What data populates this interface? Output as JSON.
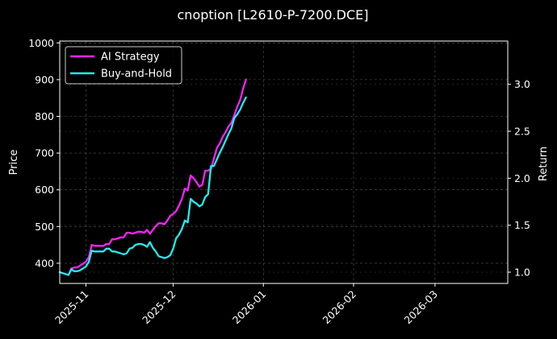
{
  "chart_data": {
    "type": "line",
    "title": "cnoption [L2610-P-7200.DCE]",
    "xlabel": "",
    "ylabel": "Price",
    "ylabel_right": "Return",
    "x_range": [
      "2025-10-23",
      "2026-03-26"
    ],
    "y_range": [
      345,
      1005
    ],
    "y_range_right": [
      0.88,
      3.46
    ],
    "x_ticks": [
      "2025-11-01",
      "2025-12-01",
      "2026-01-01",
      "2026-02-01",
      "2026-03-01"
    ],
    "x_tick_labels": [
      "2025-11",
      "2025-12",
      "2026-01",
      "2026-02",
      "2026-03"
    ],
    "y_ticks": [
      400,
      500,
      600,
      700,
      800,
      900,
      1000
    ],
    "y_ticks_right": [
      1.0,
      1.5,
      2.0,
      2.5,
      3.0
    ],
    "grid": true,
    "legend_position": "top-left",
    "series": [
      {
        "name": "AI Strategy",
        "color": "#ff22ff",
        "axis": "right",
        "x": [
          "2025-10-23",
          "2025-10-24",
          "2025-10-25",
          "2025-10-26",
          "2025-10-27",
          "2025-10-28",
          "2025-10-29",
          "2025-10-30",
          "2025-10-31",
          "2025-11-01",
          "2025-11-02",
          "2025-11-03",
          "2025-11-04",
          "2025-11-05",
          "2025-11-06",
          "2025-11-07",
          "2025-11-08",
          "2025-11-09",
          "2025-11-10",
          "2025-11-11",
          "2025-11-12",
          "2025-11-13",
          "2025-11-14",
          "2025-11-15",
          "2025-11-16",
          "2025-11-17",
          "2025-11-18",
          "2025-11-19",
          "2025-11-20",
          "2025-11-21",
          "2025-11-22",
          "2025-11-23",
          "2025-11-24",
          "2025-11-25",
          "2025-11-26",
          "2025-11-27",
          "2025-11-28",
          "2025-11-29",
          "2025-11-30",
          "2025-12-01",
          "2025-12-02",
          "2025-12-03",
          "2025-12-04",
          "2025-12-05",
          "2025-12-06",
          "2025-12-07",
          "2025-12-08",
          "2025-12-09",
          "2025-12-10",
          "2025-12-11",
          "2025-12-12",
          "2025-12-13",
          "2025-12-14",
          "2025-12-15",
          "2025-12-16",
          "2025-12-17",
          "2025-12-18",
          "2025-12-19",
          "2025-12-20",
          "2025-12-21",
          "2025-12-22",
          "2025-12-23",
          "2025-12-24",
          "2025-12-25",
          "2025-12-26"
        ],
        "values": [
          1.0,
          0.99,
          0.98,
          0.97,
          1.04,
          1.05,
          1.05,
          1.07,
          1.09,
          1.11,
          1.16,
          1.29,
          1.28,
          1.28,
          1.28,
          1.28,
          1.3,
          1.3,
          1.35,
          1.35,
          1.36,
          1.37,
          1.37,
          1.42,
          1.42,
          1.41,
          1.42,
          1.43,
          1.43,
          1.42,
          1.45,
          1.41,
          1.45,
          1.49,
          1.52,
          1.52,
          1.51,
          1.55,
          1.6,
          1.62,
          1.65,
          1.71,
          1.78,
          1.89,
          1.87,
          2.03,
          2.0,
          1.96,
          1.91,
          1.93,
          2.08,
          2.08,
          2.1,
          2.21,
          2.32,
          2.37,
          2.44,
          2.49,
          2.55,
          2.59,
          2.67,
          2.76,
          2.83,
          2.95,
          3.05
        ]
      },
      {
        "name": "Buy-and-Hold",
        "color": "#22eeee",
        "axis": "right",
        "x": [
          "2025-10-23",
          "2025-10-24",
          "2025-10-25",
          "2025-10-26",
          "2025-10-27",
          "2025-10-28",
          "2025-10-29",
          "2025-10-30",
          "2025-10-31",
          "2025-11-01",
          "2025-11-02",
          "2025-11-03",
          "2025-11-04",
          "2025-11-05",
          "2025-11-06",
          "2025-11-07",
          "2025-11-08",
          "2025-11-09",
          "2025-11-10",
          "2025-11-11",
          "2025-11-12",
          "2025-11-13",
          "2025-11-14",
          "2025-11-15",
          "2025-11-16",
          "2025-11-17",
          "2025-11-18",
          "2025-11-19",
          "2025-11-20",
          "2025-11-21",
          "2025-11-22",
          "2025-11-23",
          "2025-11-24",
          "2025-11-25",
          "2025-11-26",
          "2025-11-27",
          "2025-11-28",
          "2025-11-29",
          "2025-11-30",
          "2025-12-01",
          "2025-12-02",
          "2025-12-03",
          "2025-12-04",
          "2025-12-05",
          "2025-12-06",
          "2025-12-07",
          "2025-12-08",
          "2025-12-09",
          "2025-12-10",
          "2025-12-11",
          "2025-12-12",
          "2025-12-13",
          "2025-12-14",
          "2025-12-15",
          "2025-12-16",
          "2025-12-17",
          "2025-12-18",
          "2025-12-19",
          "2025-12-20",
          "2025-12-21",
          "2025-12-22",
          "2025-12-23",
          "2025-12-24",
          "2025-12-25",
          "2025-12-26"
        ],
        "values": [
          1.0,
          0.99,
          0.98,
          0.97,
          1.03,
          1.01,
          1.01,
          1.02,
          1.04,
          1.06,
          1.11,
          1.23,
          1.22,
          1.22,
          1.22,
          1.22,
          1.25,
          1.25,
          1.22,
          1.22,
          1.21,
          1.2,
          1.19,
          1.2,
          1.25,
          1.26,
          1.29,
          1.3,
          1.3,
          1.29,
          1.27,
          1.32,
          1.26,
          1.22,
          1.17,
          1.16,
          1.15,
          1.16,
          1.18,
          1.25,
          1.36,
          1.4,
          1.46,
          1.55,
          1.53,
          1.78,
          1.75,
          1.73,
          1.7,
          1.72,
          1.8,
          1.83,
          2.13,
          2.13,
          2.2,
          2.27,
          2.33,
          2.4,
          2.47,
          2.53,
          2.64,
          2.68,
          2.73,
          2.8,
          2.86
        ]
      }
    ]
  }
}
